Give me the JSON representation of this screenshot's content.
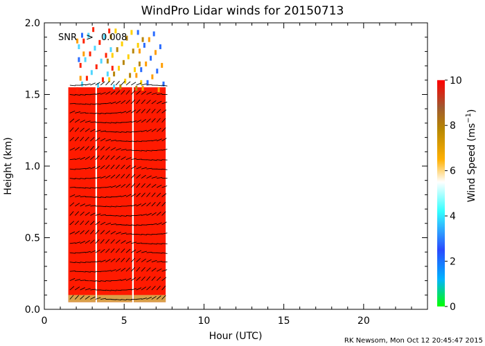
{
  "chart_data": {
    "type": "heatmap",
    "title": "WindPro Lidar winds for 20150713",
    "xlabel": "Hour (UTC)",
    "ylabel": "Height (km)",
    "xlim": [
      0,
      24
    ],
    "ylim": [
      0,
      2.0
    ],
    "x_ticks": [
      "0",
      "5",
      "10",
      "15",
      "20"
    ],
    "y_ticks": [
      "0.0",
      "0.5",
      "1.0",
      "1.5",
      "2.0"
    ],
    "annotation": {
      "label": "SNR",
      "symbol": ">",
      "value": "0.008"
    },
    "colorbar": {
      "label": "Wind Speed (ms",
      "label_sup": "−1",
      "label_close": ")",
      "range": [
        0,
        10
      ],
      "ticks": [
        "0",
        "2",
        "4",
        "6",
        "8",
        "10"
      ]
    },
    "coverage": [
      {
        "x_start": 1.5,
        "x_end": 3.2,
        "y_top": 1.55
      },
      {
        "x_start": 3.3,
        "x_end": 5.5,
        "y_top": 1.55
      },
      {
        "x_start": 5.6,
        "x_end": 7.6,
        "y_top": 1.55
      }
    ],
    "dominant_speed": "10",
    "credit": "RK Newsom, Mon Oct 12 20:45:47 2015"
  }
}
